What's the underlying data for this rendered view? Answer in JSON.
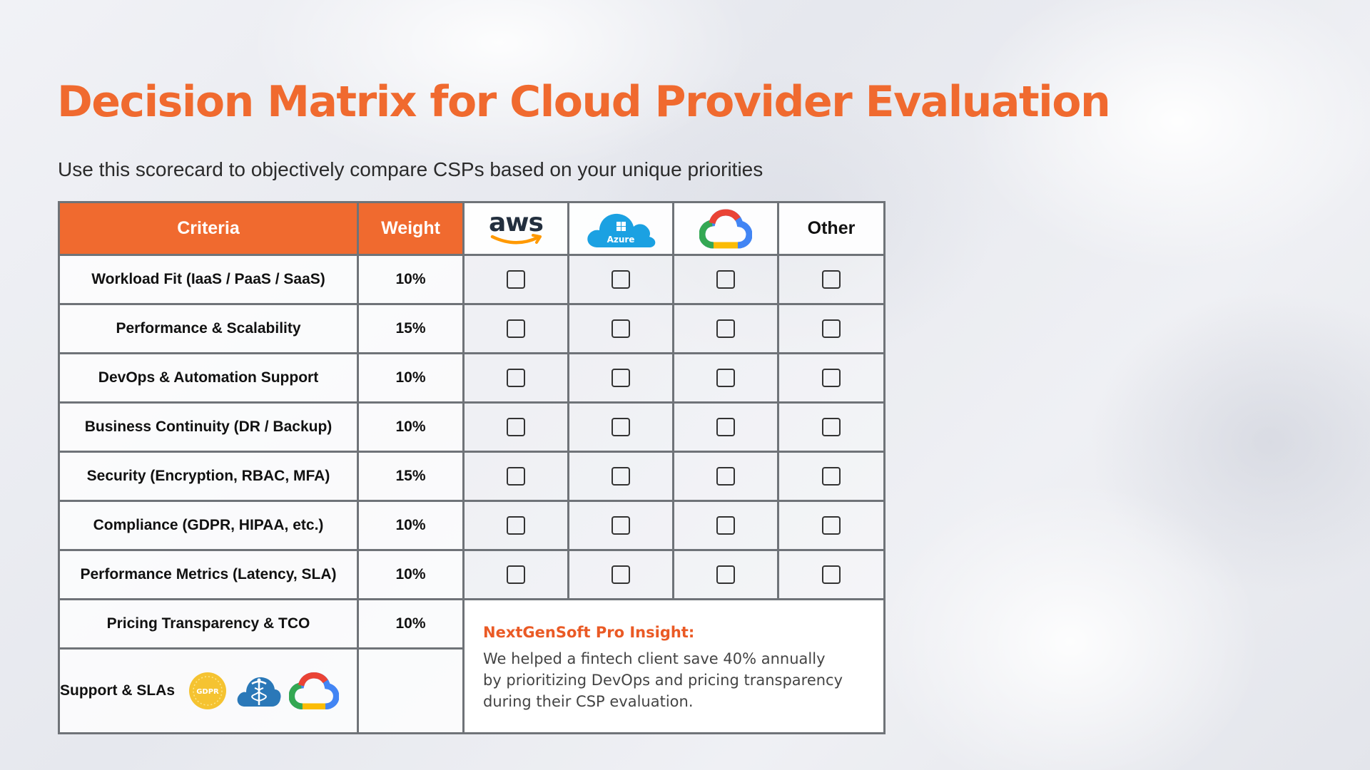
{
  "page": {
    "title": "Decision Matrix for Cloud Provider Evaluation",
    "subtitle": "Use this scorecard to objectively compare CSPs based on your unique priorities"
  },
  "table": {
    "headers": {
      "criteria": "Criteria",
      "weight": "Weight",
      "aws_logo_text": "aws",
      "azure_logo_text": "Azure",
      "gcp_logo": "google-cloud-logo-icon",
      "other": "Other"
    },
    "rows": [
      {
        "criteria": "Workload Fit (IaaS / PaaS / SaaS)",
        "weight": "10%"
      },
      {
        "criteria": "Performance & Scalability",
        "weight": "15%"
      },
      {
        "criteria": "DevOps & Automation Support",
        "weight": "10%"
      },
      {
        "criteria": "Business Continuity (DR / Backup)",
        "weight": "10%"
      },
      {
        "criteria": "Security (Encryption, RBAC, MFA)",
        "weight": "15%"
      },
      {
        "criteria": "Compliance (GDPR, HIPAA, etc.)",
        "weight": "10%"
      },
      {
        "criteria": "Performance Metrics (Latency, SLA)",
        "weight": "10%"
      },
      {
        "criteria": "Pricing Transparency & TCO",
        "weight": "10%"
      }
    ],
    "support_row": {
      "label": "Support & SLAs",
      "badges": [
        "gdpr-badge-icon",
        "hipaa-caduceus-icon",
        "google-cloud-logo-icon"
      ],
      "gdpr_badge_text": "GDPR"
    }
  },
  "insight": {
    "title": "NextGenSoft Pro Insight:",
    "lines": [
      "We helped a fintech client save 40% annually",
      "by prioritizing DevOps and pricing transparency",
      "during their CSP evaluation."
    ]
  },
  "colors": {
    "accent": "#f06a2f",
    "grid": "#6f7378"
  }
}
